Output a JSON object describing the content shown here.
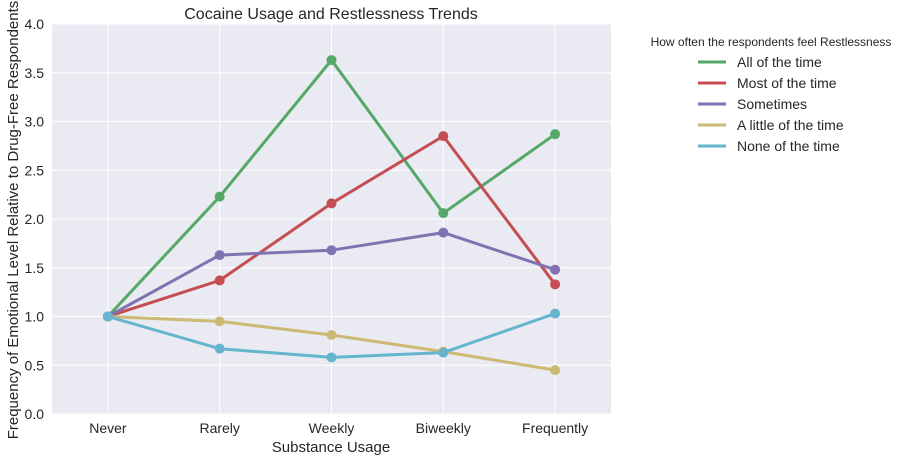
{
  "chart_data": {
    "type": "line",
    "title": "Cocaine Usage and Restlessness Trends",
    "xlabel": "Substance Usage",
    "ylabel": "Frequency of Emotional Level Relative to Drug-Free Respondents",
    "categories": [
      "Never",
      "Rarely",
      "Weekly",
      "Biweekly",
      "Frequently"
    ],
    "ylim": [
      0,
      4
    ],
    "yticks": [
      "0.0",
      "0.5",
      "1.0",
      "1.5",
      "2.0",
      "2.5",
      "3.0",
      "3.5",
      "4.0"
    ],
    "grid": true,
    "legend_title": "How often the respondents feel Restlessness",
    "legend_position": "outside-right",
    "series": [
      {
        "name": "All of the time",
        "color": "#55a868",
        "values": [
          1.0,
          2.23,
          3.63,
          2.06,
          2.87
        ]
      },
      {
        "name": "Most of the time",
        "color": "#c44e52",
        "values": [
          1.0,
          1.37,
          2.16,
          2.85,
          1.33
        ]
      },
      {
        "name": "Sometimes",
        "color": "#8172b2",
        "values": [
          1.0,
          1.63,
          1.68,
          1.86,
          1.48
        ]
      },
      {
        "name": "A little of the time",
        "color": "#ccb974",
        "values": [
          1.0,
          0.95,
          0.81,
          0.64,
          0.45
        ]
      },
      {
        "name": "None of the time",
        "color": "#64b5cd",
        "values": [
          1.0,
          0.67,
          0.58,
          0.63,
          1.03
        ]
      }
    ],
    "plot_background": "#eaeaf2",
    "grid_color": "#ffffff"
  }
}
